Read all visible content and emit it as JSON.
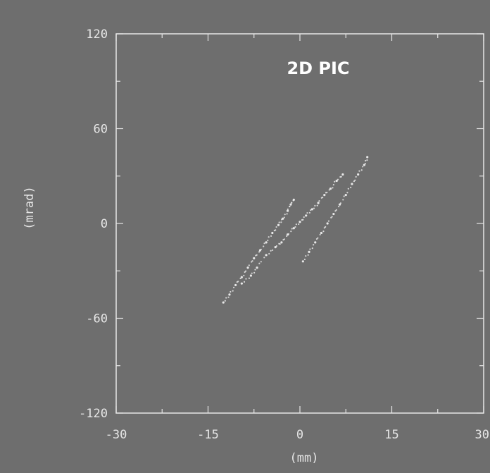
{
  "chart_data": {
    "type": "scatter",
    "title": "2D PIC",
    "xlabel": "(mm)",
    "ylabel": "(mrad)",
    "xlim": [
      -30,
      30
    ],
    "ylim": [
      -120,
      120
    ],
    "x_ticks": [
      -30,
      -15,
      0,
      15,
      30
    ],
    "y_ticks": [
      -120,
      -60,
      0,
      60,
      120
    ],
    "x_tick_labels": [
      "-30",
      "-15",
      "0",
      "15",
      "30"
    ],
    "y_tick_labels": [
      "-120",
      "-60",
      "0",
      "60",
      "120"
    ],
    "grid": false,
    "colors": {
      "background": "#6e6e6e",
      "frame": "#e6e6e6",
      "points": "#e8e8e8",
      "title": "#ffffff"
    },
    "series": [
      {
        "values": [
          [
            -12.5,
            -50
          ],
          [
            -11.5,
            -45
          ],
          [
            -10.5,
            -39
          ],
          [
            -9.5,
            -34
          ],
          [
            -8.5,
            -28
          ],
          [
            -7.5,
            -22
          ],
          [
            -6.5,
            -17
          ],
          [
            -5.5,
            -12
          ],
          [
            -4.5,
            -6
          ],
          [
            -3.5,
            -1
          ],
          [
            -2.8,
            3
          ],
          [
            -2,
            8
          ],
          [
            -1.5,
            12
          ],
          [
            -1,
            15
          ]
        ]
      },
      {
        "values": [
          [
            -9.5,
            -38
          ],
          [
            -8,
            -33
          ],
          [
            -7,
            -28
          ],
          [
            -5.5,
            -20
          ],
          [
            -4,
            -15
          ],
          [
            -3,
            -12
          ],
          [
            -2,
            -7
          ],
          [
            -1,
            -3
          ],
          [
            0,
            1
          ],
          [
            1,
            5
          ],
          [
            2,
            9
          ],
          [
            3,
            13
          ],
          [
            4,
            18
          ],
          [
            5,
            22
          ],
          [
            6,
            27
          ],
          [
            7,
            31
          ]
        ]
      },
      {
        "values": [
          [
            0.5,
            -24
          ],
          [
            1.5,
            -18
          ],
          [
            2.5,
            -12
          ],
          [
            3.5,
            -6
          ],
          [
            4.5,
            0
          ],
          [
            5.5,
            6
          ],
          [
            6.5,
            12
          ],
          [
            7.5,
            18
          ],
          [
            8.5,
            25
          ],
          [
            9.5,
            31
          ],
          [
            10.5,
            37
          ],
          [
            11,
            42
          ]
        ]
      }
    ]
  }
}
